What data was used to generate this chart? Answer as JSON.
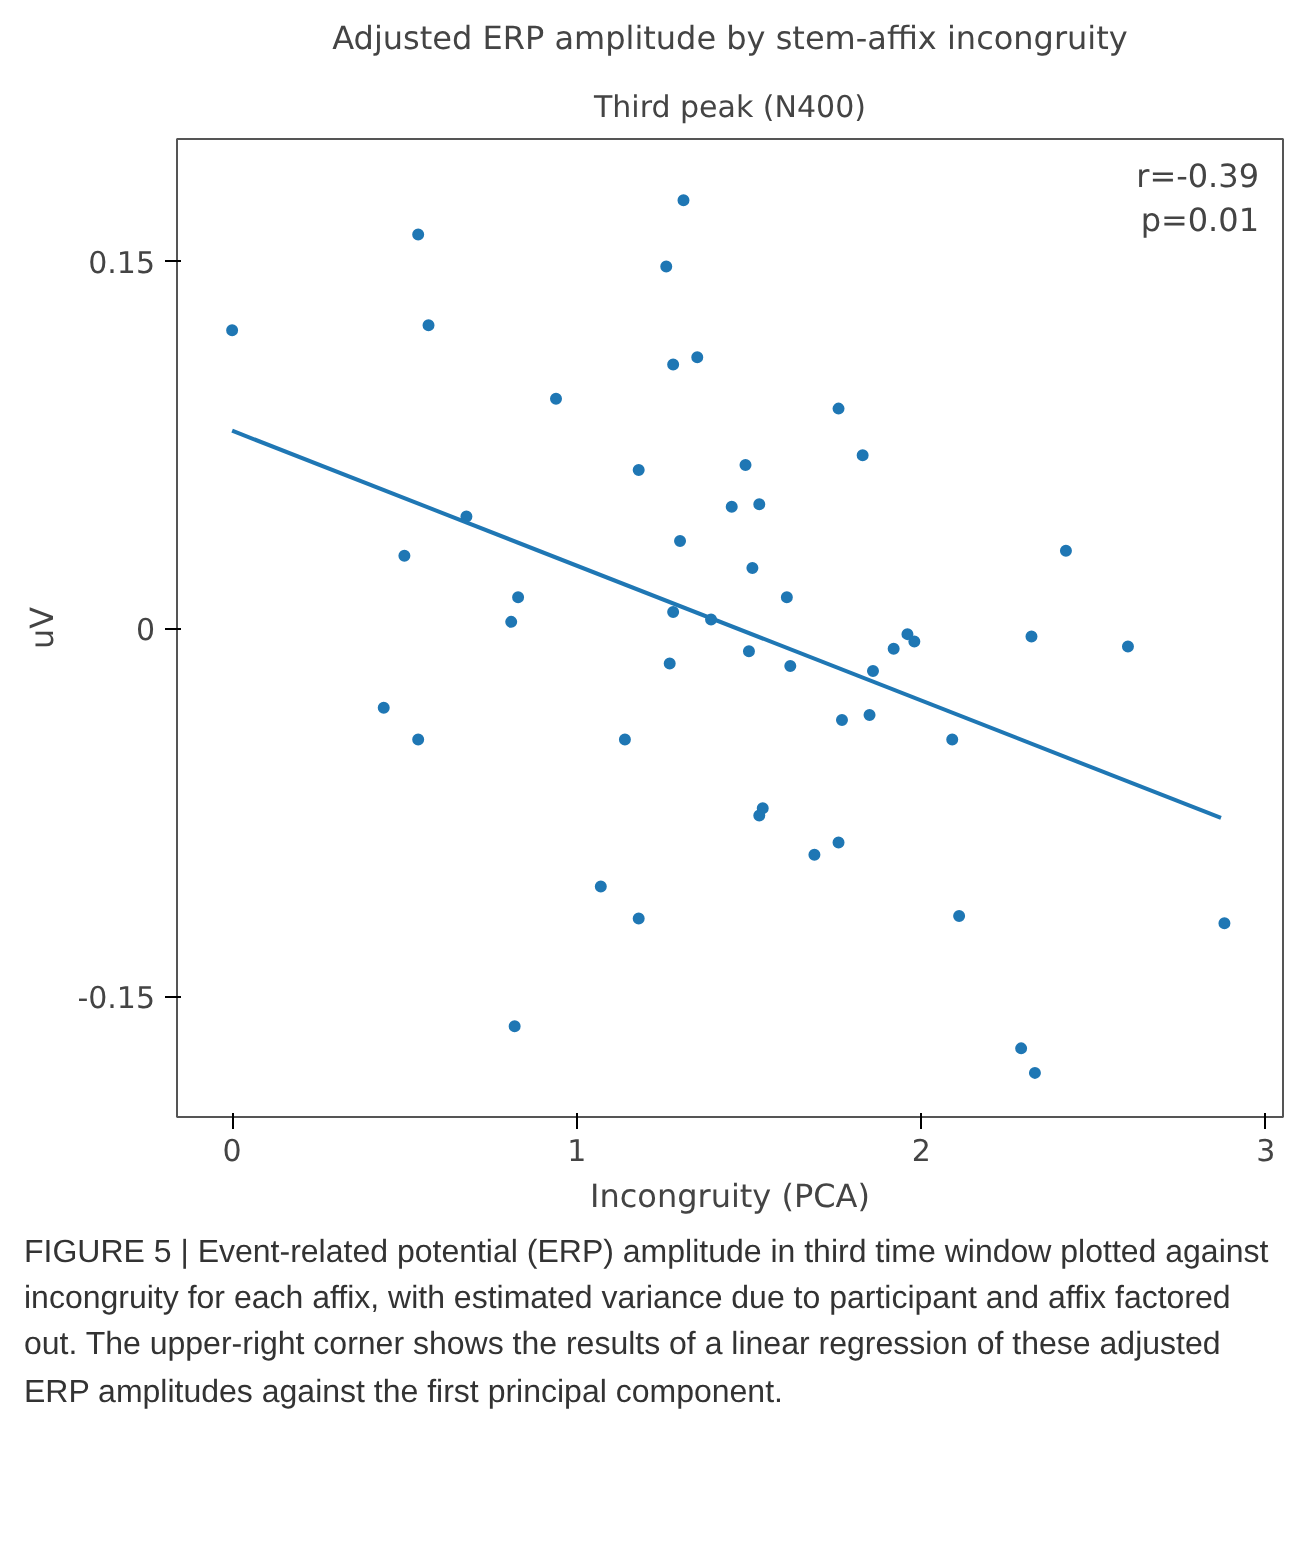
{
  "chart_data": {
    "type": "scatter",
    "title": "Adjusted ERP amplitude by stem-affix incongruity",
    "subtitle": "Third peak (N400)",
    "xlabel": "Incongruity (PCA)",
    "ylabel": "uV",
    "xlim": [
      -0.16,
      3.05
    ],
    "ylim": [
      -0.199,
      0.2
    ],
    "xticks": [
      0,
      1,
      2,
      3
    ],
    "yticks": [
      {
        "value": 0.15,
        "label": "0.15"
      },
      0,
      {
        "value": -0.15,
        "label": "-0.15"
      }
    ],
    "grid": false,
    "series": [
      {
        "marker": "circle",
        "color": "#1f77b4",
        "x": [
          0,
          0.54,
          0.57,
          0.94,
          0.68,
          0.5,
          0.83,
          0.81,
          0.44,
          0.54,
          0.82,
          1.07,
          1.14,
          1.18,
          1.18,
          1.31,
          1.26,
          1.28,
          1.35,
          1.3,
          1.28,
          1.27,
          1.39,
          1.45,
          1.49,
          1.53,
          1.51,
          1.5,
          1.61,
          1.62,
          1.54,
          1.53,
          1.69,
          1.76,
          1.76,
          1.77,
          1.83,
          1.85,
          1.86,
          1.92,
          1.96,
          1.98,
          2.09,
          2.11,
          2.29,
          2.33,
          2.32,
          2.42,
          2.6,
          2.88
        ],
        "values": [
          0.122,
          0.161,
          0.124,
          0.094,
          0.046,
          0.03,
          0.013,
          0.003,
          -0.032,
          -0.045,
          -0.162,
          -0.105,
          -0.045,
          -0.118,
          0.065,
          0.175,
          0.148,
          0.108,
          0.111,
          0.036,
          0.007,
          -0.014,
          0.004,
          0.05,
          0.067,
          0.051,
          0.025,
          -0.009,
          0.013,
          -0.015,
          -0.073,
          -0.076,
          -0.092,
          -0.087,
          0.09,
          -0.037,
          0.071,
          -0.035,
          -0.017,
          -0.008,
          -0.002,
          -0.005,
          -0.045,
          -0.117,
          -0.171,
          -0.181,
          -0.003,
          0.032,
          -0.007,
          -0.12
        ]
      },
      {
        "type": "line",
        "marker": "none",
        "color": "#1f77b4",
        "x": [
          0,
          2.87
        ],
        "values": [
          0.081,
          -0.077
        ]
      }
    ],
    "annotations": [
      "r=-0.39",
      "p=0.01",
      "FIGURE 5 | Event-related potential (ERP) amplitude in third time window plotted against incongruity for each affix, with estimated variance due to participant and affix factored out. The upper-right corner shows the results of a linear regression of these adjusted ERP amplitudes against the first principal component."
    ]
  }
}
